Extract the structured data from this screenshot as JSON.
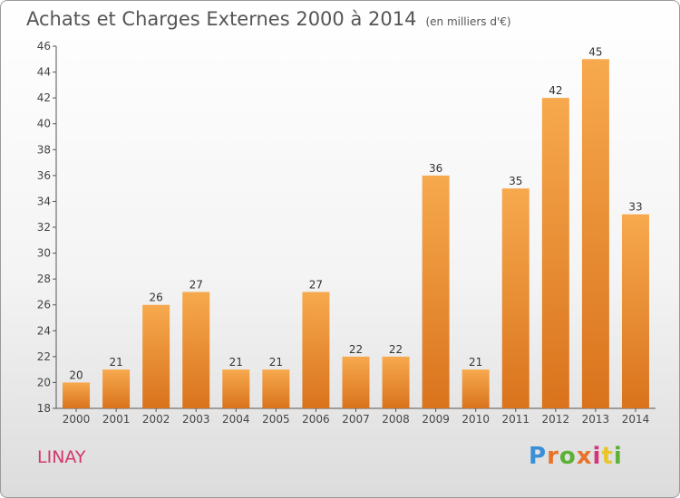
{
  "header": {
    "title": "Achats et Charges Externes 2000 à 2014",
    "subtitle": "(en milliers d'€)"
  },
  "footer": {
    "commune": "LINAY",
    "logo_text": "Proxiti"
  },
  "colors": {
    "bar_light": "#f7a94e",
    "bar_dark": "#d9731c",
    "commune": "#d2376e"
  },
  "chart_data": {
    "type": "bar",
    "title": "Achats et Charges Externes 2000 à 2014",
    "subtitle": "(en milliers d'€)",
    "categories": [
      "2000",
      "2001",
      "2002",
      "2003",
      "2004",
      "2005",
      "2006",
      "2007",
      "2008",
      "2009",
      "2010",
      "2011",
      "2012",
      "2013",
      "2014"
    ],
    "values": [
      20,
      21,
      26,
      27,
      21,
      21,
      27,
      22,
      22,
      36,
      21,
      35,
      42,
      45,
      33
    ],
    "ylim": [
      18,
      46
    ],
    "yticks": [
      18,
      20,
      22,
      24,
      26,
      28,
      30,
      32,
      34,
      36,
      38,
      40,
      42,
      44,
      46
    ],
    "grid": false,
    "xlabel": "",
    "ylabel": ""
  }
}
